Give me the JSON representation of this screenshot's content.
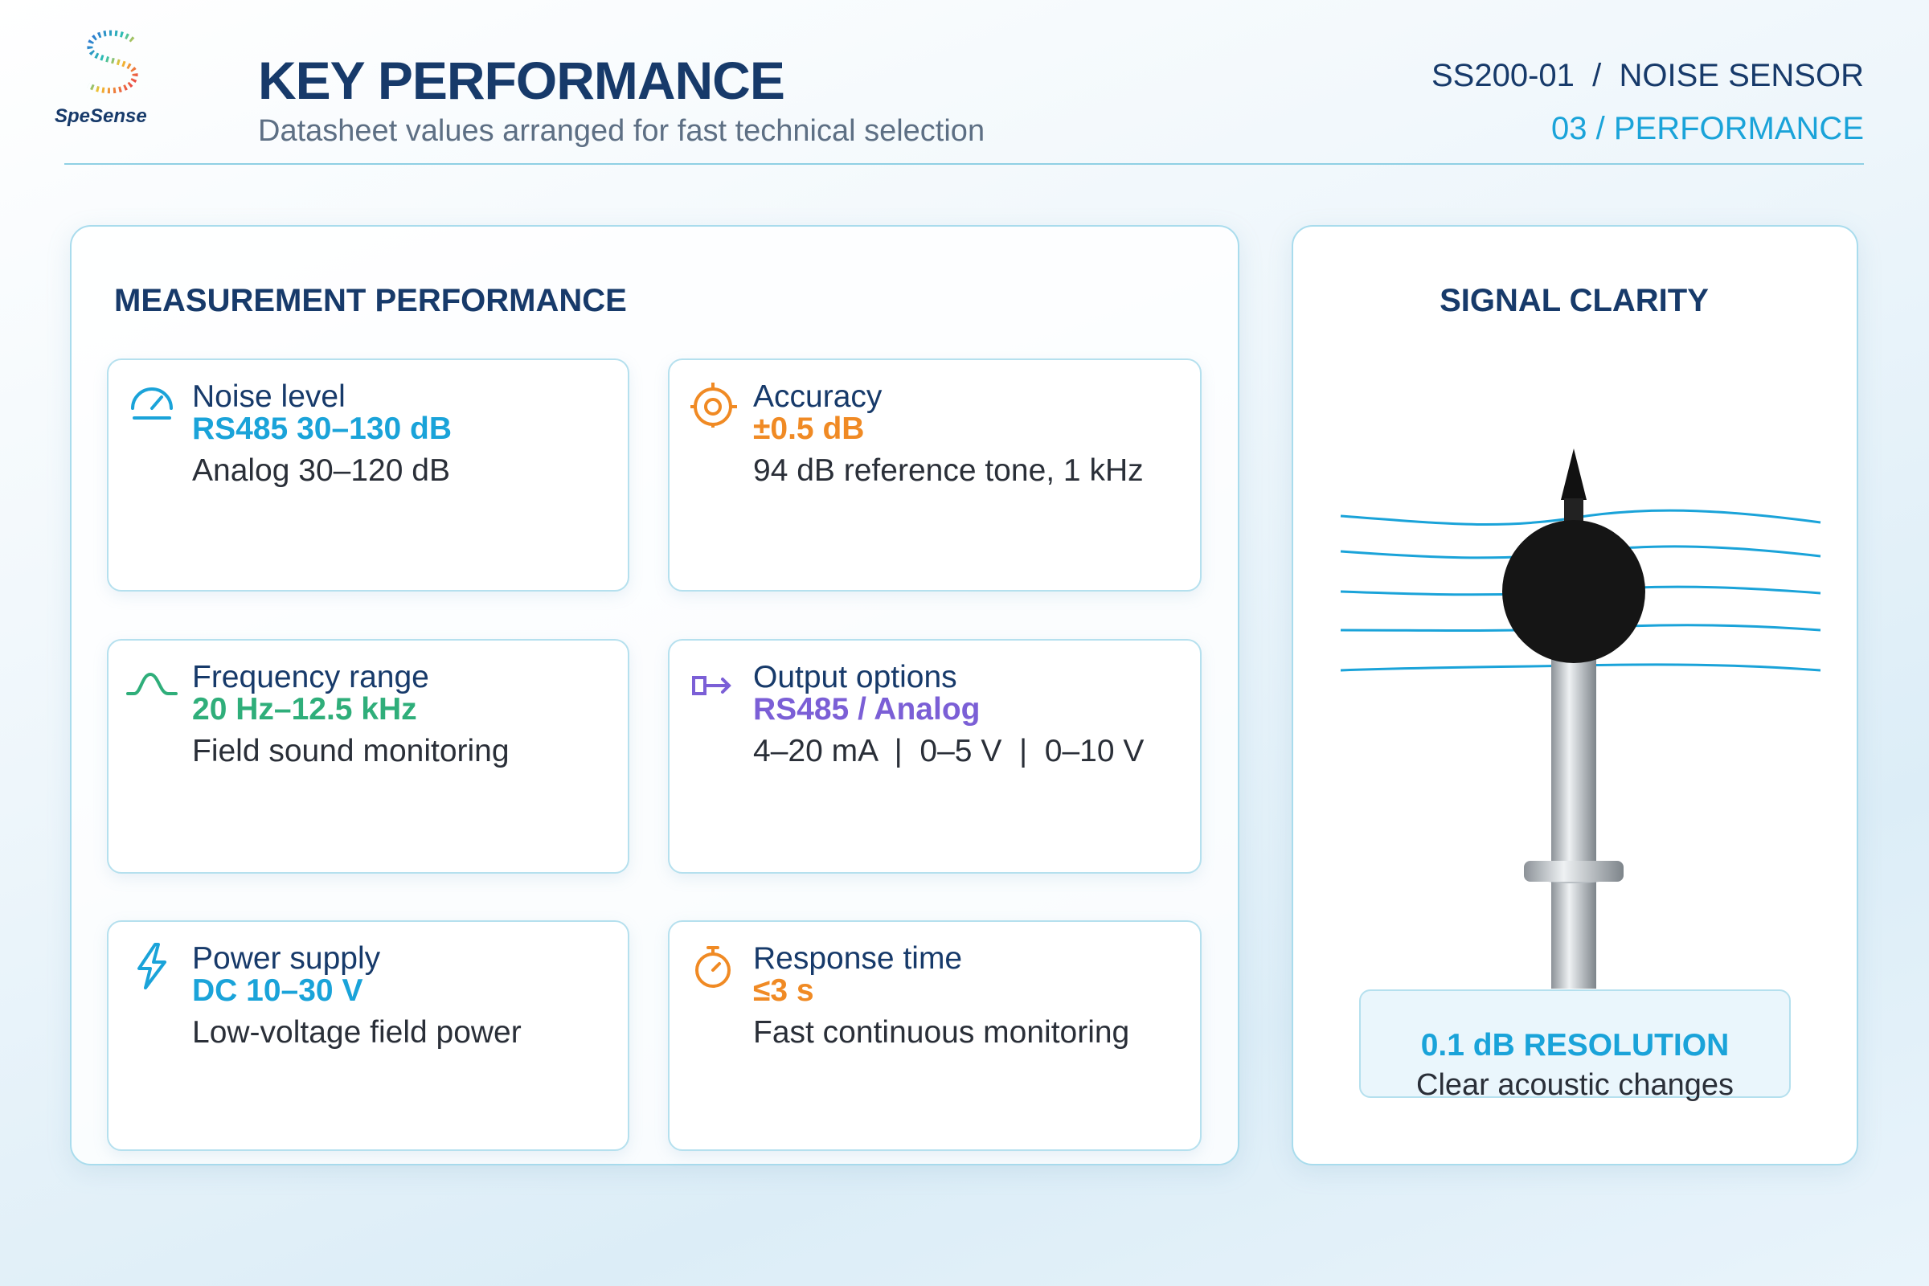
{
  "header": {
    "logo": "SpeSense",
    "title": "KEY PERFORMANCE",
    "subtitle": "Datasheet values arranged for fast technical selection",
    "product": "SS200-01  /  NOISE SENSOR",
    "section": "03 / PERFORMANCE"
  },
  "measurement": {
    "title": "MEASUREMENT PERFORMANCE",
    "cards": [
      {
        "label": "Noise level",
        "value": "RS485 30–130 dB",
        "note": "Analog 30–120 dB"
      },
      {
        "label": "Accuracy",
        "value": "±0.5 dB",
        "note": "94 dB reference tone, 1 kHz"
      },
      {
        "label": "Frequency range",
        "value": "20 Hz–12.5 kHz",
        "note": "Field sound monitoring"
      },
      {
        "label": "Output options",
        "value": "RS485 / Analog",
        "note": "4–20 mA  |  0–5 V  |  0–10 V"
      },
      {
        "label": "Power supply",
        "value": "DC 10–30 V",
        "note": "Low-voltage field power"
      },
      {
        "label": "Response time",
        "value": "≤3 s",
        "note": "Fast continuous monitoring"
      }
    ]
  },
  "clarity": {
    "title": "SIGNAL CLARITY",
    "highlight": "0.1 dB RESOLUTION",
    "caption": "Clear acoustic changes"
  }
}
